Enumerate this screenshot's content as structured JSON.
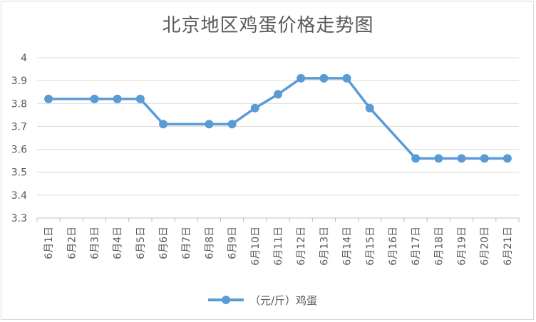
{
  "chart_data": {
    "type": "line",
    "title": "北京地区鸡蛋价格走势图",
    "categories": [
      "6月1日",
      "6月2日",
      "6月3日",
      "6月4日",
      "6月5日",
      "6月6日",
      "6月7日",
      "6月8日",
      "6月9日",
      "6月10日",
      "6月11日",
      "6月12日",
      "6月13日",
      "6月14日",
      "6月15日",
      "6月16日",
      "6月17日",
      "6月18日",
      "6月19日",
      "6月20日",
      "6月21日"
    ],
    "series": [
      {
        "name": "（元/斤）鸡蛋",
        "color": "#5b9bd5",
        "values": [
          3.82,
          null,
          3.82,
          3.82,
          3.82,
          3.71,
          null,
          3.71,
          3.71,
          3.78,
          3.84,
          3.91,
          3.91,
          3.91,
          3.78,
          null,
          3.56,
          3.56,
          3.56,
          3.56,
          3.56
        ]
      }
    ],
    "ylim": [
      3.3,
      4
    ],
    "yticks": [
      "3.3",
      "3.4",
      "3.5",
      "3.6",
      "3.7",
      "3.8",
      "3.9",
      "4"
    ],
    "grid": true,
    "legend_position": "bottom",
    "xlabel": "",
    "ylabel": ""
  }
}
